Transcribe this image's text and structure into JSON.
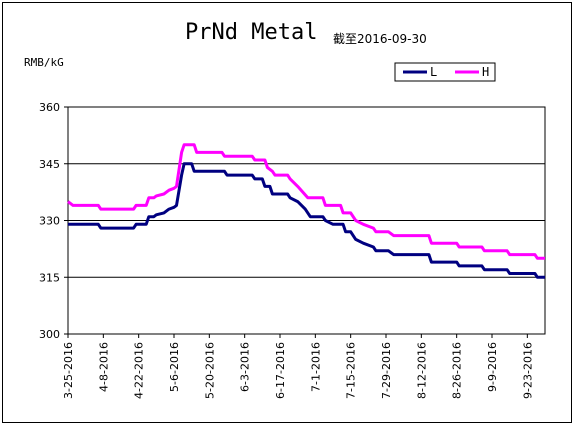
{
  "chart_data": {
    "type": "line",
    "title": "PrNd Metal",
    "subtitle": "截至2016-09-30",
    "ylabel": "RMB/kG",
    "ylim": [
      300,
      360
    ],
    "yticks": [
      300,
      315,
      330,
      345,
      360
    ],
    "x_start": "2016-03-25",
    "x_end": "2016-09-30",
    "xticks": [
      "3-25-2016",
      "4-8-2016",
      "4-22-2016",
      "5-6-2016",
      "5-20-2016",
      "6-3-2016",
      "6-17-2016",
      "7-1-2016",
      "7-15-2016",
      "7-29-2016",
      "8-12-2016",
      "8-26-2016",
      "9-9-2016",
      "9-23-2016"
    ],
    "grid": "horizontal",
    "legend_position": "top-right",
    "colors": {
      "L": "#000080",
      "H": "#ff00ff"
    },
    "series": [
      {
        "name": "L",
        "points": [
          [
            "2016-03-25",
            329
          ],
          [
            "2016-03-26",
            329
          ],
          [
            "2016-04-06",
            329
          ],
          [
            "2016-04-07",
            328
          ],
          [
            "2016-04-20",
            328
          ],
          [
            "2016-04-21",
            329
          ],
          [
            "2016-04-25",
            329
          ],
          [
            "2016-04-26",
            331
          ],
          [
            "2016-04-28",
            331
          ],
          [
            "2016-04-29",
            331.5
          ],
          [
            "2016-05-02",
            332
          ],
          [
            "2016-05-04",
            333
          ],
          [
            "2016-05-06",
            333.5
          ],
          [
            "2016-05-07",
            334
          ],
          [
            "2016-05-09",
            342
          ],
          [
            "2016-05-10",
            345
          ],
          [
            "2016-05-13",
            345
          ],
          [
            "2016-05-14",
            343
          ],
          [
            "2016-05-26",
            343
          ],
          [
            "2016-05-27",
            342
          ],
          [
            "2016-06-06",
            342
          ],
          [
            "2016-06-07",
            341
          ],
          [
            "2016-06-10",
            341
          ],
          [
            "2016-06-11",
            339
          ],
          [
            "2016-06-13",
            339
          ],
          [
            "2016-06-14",
            337
          ],
          [
            "2016-06-20",
            337
          ],
          [
            "2016-06-21",
            336
          ],
          [
            "2016-06-24",
            335
          ],
          [
            "2016-06-27",
            333
          ],
          [
            "2016-06-29",
            331
          ],
          [
            "2016-07-04",
            331
          ],
          [
            "2016-07-05",
            330
          ],
          [
            "2016-07-08",
            329
          ],
          [
            "2016-07-12",
            329
          ],
          [
            "2016-07-13",
            327
          ],
          [
            "2016-07-15",
            327
          ],
          [
            "2016-07-17",
            325
          ],
          [
            "2016-07-20",
            324
          ],
          [
            "2016-07-24",
            323
          ],
          [
            "2016-07-25",
            322
          ],
          [
            "2016-07-30",
            322
          ],
          [
            "2016-08-01",
            321
          ],
          [
            "2016-08-15",
            321
          ],
          [
            "2016-08-16",
            319
          ],
          [
            "2016-08-26",
            319
          ],
          [
            "2016-08-27",
            318
          ],
          [
            "2016-09-05",
            318
          ],
          [
            "2016-09-06",
            317
          ],
          [
            "2016-09-15",
            317
          ],
          [
            "2016-09-16",
            316
          ],
          [
            "2016-09-26",
            316
          ],
          [
            "2016-09-27",
            315
          ],
          [
            "2016-09-30",
            315
          ]
        ]
      },
      {
        "name": "H",
        "points": [
          [
            "2016-03-25",
            335
          ],
          [
            "2016-03-27",
            334
          ],
          [
            "2016-04-06",
            334
          ],
          [
            "2016-04-07",
            333
          ],
          [
            "2016-04-20",
            333
          ],
          [
            "2016-04-21",
            334
          ],
          [
            "2016-04-25",
            334
          ],
          [
            "2016-04-26",
            336
          ],
          [
            "2016-04-28",
            336
          ],
          [
            "2016-04-29",
            336.5
          ],
          [
            "2016-05-02",
            337
          ],
          [
            "2016-05-04",
            338
          ],
          [
            "2016-05-06",
            338.5
          ],
          [
            "2016-05-07",
            339
          ],
          [
            "2016-05-09",
            348
          ],
          [
            "2016-05-10",
            350
          ],
          [
            "2016-05-14",
            350
          ],
          [
            "2016-05-15",
            348
          ],
          [
            "2016-05-25",
            348
          ],
          [
            "2016-05-26",
            347
          ],
          [
            "2016-06-06",
            347
          ],
          [
            "2016-06-07",
            346
          ],
          [
            "2016-06-11",
            346
          ],
          [
            "2016-06-12",
            344
          ],
          [
            "2016-06-14",
            343
          ],
          [
            "2016-06-15",
            342
          ],
          [
            "2016-06-20",
            342
          ],
          [
            "2016-06-21",
            341
          ],
          [
            "2016-06-24",
            339
          ],
          [
            "2016-06-28",
            336
          ],
          [
            "2016-07-04",
            336
          ],
          [
            "2016-07-05",
            334
          ],
          [
            "2016-07-11",
            334
          ],
          [
            "2016-07-12",
            332
          ],
          [
            "2016-07-15",
            332
          ],
          [
            "2016-07-17",
            330
          ],
          [
            "2016-07-20",
            329
          ],
          [
            "2016-07-24",
            328
          ],
          [
            "2016-07-25",
            327
          ],
          [
            "2016-07-30",
            327
          ],
          [
            "2016-08-01",
            326
          ],
          [
            "2016-08-15",
            326
          ],
          [
            "2016-08-16",
            324
          ],
          [
            "2016-08-26",
            324
          ],
          [
            "2016-08-27",
            323
          ],
          [
            "2016-09-05",
            323
          ],
          [
            "2016-09-06",
            322
          ],
          [
            "2016-09-15",
            322
          ],
          [
            "2016-09-16",
            321
          ],
          [
            "2016-09-26",
            321
          ],
          [
            "2016-09-27",
            320
          ],
          [
            "2016-09-30",
            320
          ]
        ]
      }
    ]
  }
}
